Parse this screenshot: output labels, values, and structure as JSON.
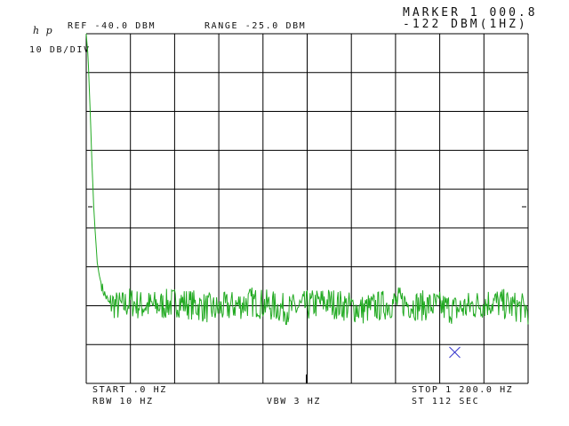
{
  "header": {
    "logo": "h p",
    "ref": "REF -40.0 DBM",
    "range": "RANGE -25.0 DBM",
    "marker_line1": "MARKER 1 000.8",
    "marker_line2": "-122 DBM(1HZ)",
    "scale": "10 DB/DIV"
  },
  "footer": {
    "start": "START .0 HZ",
    "rbw": "RBW 10 HZ",
    "vbw": "VBW 3 HZ",
    "stop": "STOP 1 200.0 HZ",
    "sweep": "ST 112 SEC"
  },
  "chart_data": {
    "type": "line",
    "xlabel": "",
    "ylabel": "",
    "xlim": [
      0,
      1200
    ],
    "ylim": [
      -130,
      -40
    ],
    "x_unit": "HZ",
    "y_unit": "DBM(1HZ)",
    "grid": true,
    "grid_divisions": {
      "x": 10,
      "y": 9
    },
    "trace_color": "#22aa22",
    "marker_color": "#3333cc",
    "marker": {
      "x": 1000.8,
      "y": -122
    },
    "series": [
      {
        "x": [
          0,
          5,
          10,
          15,
          20,
          25,
          30,
          35,
          40,
          45,
          50,
          55,
          60,
          65,
          70,
          80,
          90,
          100,
          120,
          150,
          200,
          250,
          300,
          350,
          400,
          450,
          500,
          550,
          600,
          650,
          700,
          750,
          800,
          850,
          900,
          950,
          1000,
          1050,
          1100,
          1150,
          1200
        ],
        "values": [
          -40,
          -46,
          -58,
          -72,
          -84,
          -92,
          -99,
          -102,
          -104,
          -106,
          -107,
          -108,
          -109,
          -110,
          -109,
          -110,
          -110,
          -110,
          -109,
          -110,
          -110,
          -109,
          -110,
          -111,
          -110,
          -109,
          -110,
          -111,
          -110,
          -109,
          -110,
          -111,
          -110,
          -109,
          -110,
          -110,
          -111,
          -110,
          -109,
          -110,
          -111
        ]
      }
    ]
  }
}
